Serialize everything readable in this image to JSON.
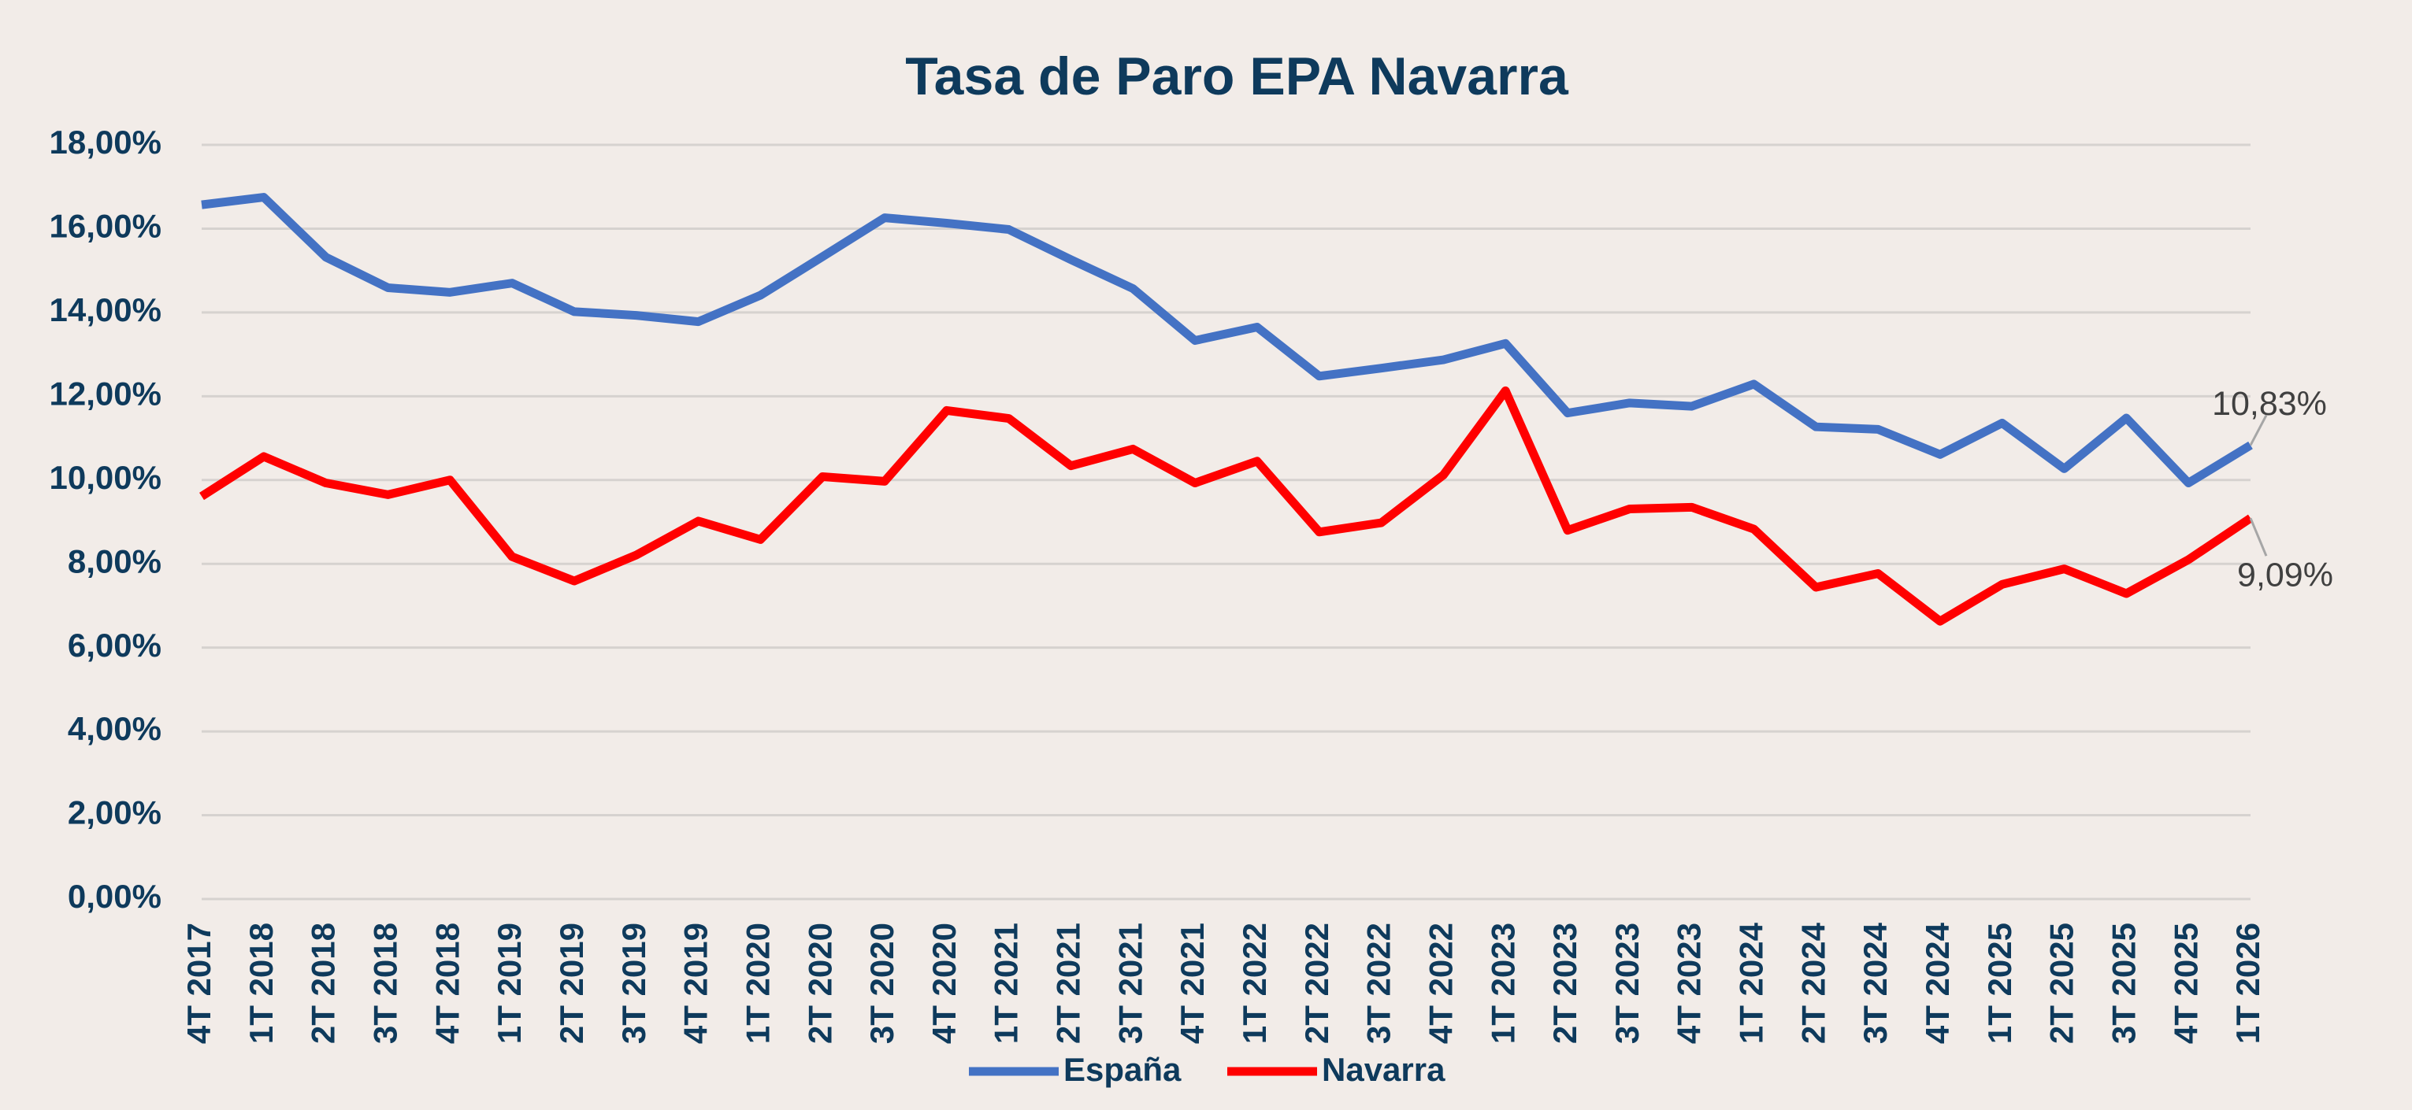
{
  "chart_data": {
    "type": "line",
    "title": "Tasa de Paro EPA Navarra",
    "categories": [
      "4T 2017",
      "1T 2018",
      "2T 2018",
      "3T 2018",
      "4T 2018",
      "1T 2019",
      "2T 2019",
      "3T 2019",
      "4T 2019",
      "1T 2020",
      "2T 2020",
      "3T 2020",
      "4T 2020",
      "1T 2021",
      "2T 2021",
      "3T 2021",
      "4T 2021",
      "1T 2022",
      "2T 2022",
      "3T 2022",
      "4T 2022",
      "1T 2023",
      "2T 2023",
      "3T 2023",
      "4T 2023",
      "1T 2024",
      "2T 2024",
      "3T 2024",
      "4T 2024",
      "1T 2025",
      "2T 2025",
      "3T 2025",
      "4T 2025",
      "1T 2026"
    ],
    "series": [
      {
        "name": "España",
        "color": "#4472c4",
        "values": [
          16.57,
          16.75,
          15.32,
          14.59,
          14.48,
          14.7,
          14.02,
          13.93,
          13.78,
          14.41,
          15.33,
          16.26,
          16.13,
          15.98,
          15.26,
          14.57,
          13.33,
          13.65,
          12.48,
          12.67,
          12.87,
          13.26,
          11.6,
          11.84,
          11.76,
          12.29,
          11.27,
          11.21,
          10.61,
          11.36,
          10.27,
          11.48,
          9.93,
          10.83
        ],
        "value_labels": {
          "33": "10,83%"
        }
      },
      {
        "name": "Navarra",
        "color": "#ff0000",
        "values": [
          9.61,
          10.56,
          9.93,
          9.65,
          10.0,
          8.17,
          7.59,
          8.21,
          9.02,
          8.58,
          10.08,
          9.97,
          11.66,
          11.47,
          10.34,
          10.74,
          9.93,
          10.45,
          8.76,
          8.98,
          10.12,
          12.13,
          8.8,
          9.31,
          9.35,
          8.83,
          7.44,
          7.77,
          6.63,
          7.51,
          7.88,
          7.29,
          8.1,
          9.09
        ],
        "value_labels": {
          "33": "9,09%"
        }
      }
    ],
    "ylim": [
      0,
      18
    ],
    "yticks": [
      {
        "value": 0,
        "label": "0,00%"
      },
      {
        "value": 2,
        "label": "2,00%"
      },
      {
        "value": 4,
        "label": "4,00%"
      },
      {
        "value": 6,
        "label": "6,00%"
      },
      {
        "value": 8,
        "label": "8,00%"
      },
      {
        "value": 10,
        "label": "10,00%"
      },
      {
        "value": 12,
        "label": "12,00%"
      },
      {
        "value": 14,
        "label": "14,00%"
      },
      {
        "value": 16,
        "label": "16,00%"
      },
      {
        "value": 18,
        "label": "18,00%"
      }
    ],
    "grid": true,
    "legend": "bottom"
  }
}
